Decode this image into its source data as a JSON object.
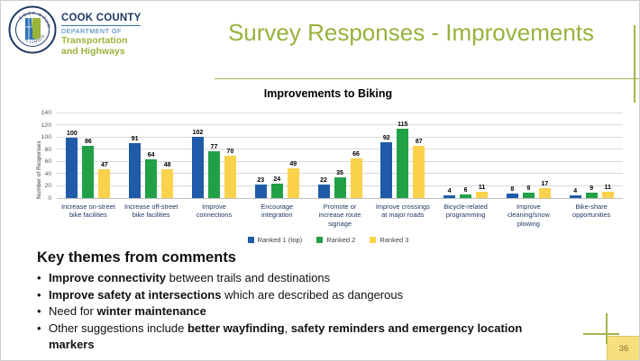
{
  "header": {
    "logo": {
      "seal_top_text": "COOK COUNTY",
      "seal_bottom_text": "ILLINOIS",
      "org_name": "COOK COUNTY",
      "dept_line": "DEPARTMENT OF",
      "dept_name_line1": "Transportation",
      "dept_name_line2": "and Highways"
    },
    "title": "Survey Responses - Improvements"
  },
  "chart_data": {
    "type": "bar",
    "title": "Improvements to Biking",
    "xlabel": "",
    "ylabel": "Number of Responses",
    "ylim": [
      0,
      140
    ],
    "ytick_step": 20,
    "grid": true,
    "legend_position": "bottom",
    "categories": [
      "Increase on-street bike facilities",
      "Increase off-street bike facilities",
      "Improve connections",
      "Encourage integration",
      "Promote or increase route signage",
      "Improve crossings at major roads",
      "Bicycle-related programming",
      "Improve cleaning/snow plowing",
      "Bike-share opportunities"
    ],
    "series": [
      {
        "name": "Ranked 1 (top)",
        "color": "#1F5BA8",
        "values": [
          100,
          91,
          102,
          23,
          22,
          92,
          4,
          8,
          4
        ]
      },
      {
        "name": "Ranked 2",
        "color": "#22A046",
        "values": [
          86,
          64,
          77,
          24,
          35,
          115,
          6,
          9,
          9
        ]
      },
      {
        "name": "Ranked 3",
        "color": "#FAD24B",
        "values": [
          47,
          48,
          70,
          49,
          66,
          87,
          11,
          17,
          11
        ]
      }
    ]
  },
  "key_themes": {
    "heading": "Key themes from comments",
    "bullets": [
      [
        {
          "text": "Improve connectivity",
          "bold": true
        },
        {
          "text": " between trails and destinations",
          "bold": false
        }
      ],
      [
        {
          "text": "Improve safety at intersections",
          "bold": true
        },
        {
          "text": " which are described as dangerous",
          "bold": false
        }
      ],
      [
        {
          "text": "Need for ",
          "bold": false
        },
        {
          "text": "winter maintenance",
          "bold": true
        }
      ],
      [
        {
          "text": "Other suggestions include ",
          "bold": false
        },
        {
          "text": "better wayfinding",
          "bold": true
        },
        {
          "text": ", ",
          "bold": false
        },
        {
          "text": "safety reminders and emergency location markers",
          "bold": true
        }
      ]
    ]
  },
  "footer": {
    "page_number": "36"
  },
  "colors": {
    "accent_olive": "#97B23C",
    "navy": "#1F3864",
    "brand_blue": "#2E74B5",
    "bar_blue": "#1F5BA8",
    "bar_green": "#22A046",
    "bar_yellow": "#FAD24B",
    "gridline": "#D9D9D9",
    "page_box_fill": "#F8DF7D"
  }
}
